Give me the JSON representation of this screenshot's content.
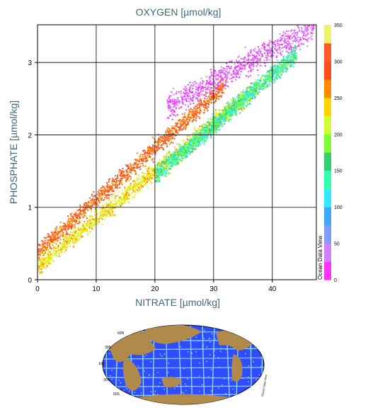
{
  "chart_data": {
    "type": "scatter",
    "title": "OXYGEN [µmol/kg]",
    "xlabel": "NITRATE [µmol/kg]",
    "ylabel": "PHOSPHATE [µmol/kg]",
    "xlim": [
      0,
      47.5
    ],
    "ylim": [
      0,
      3.52
    ],
    "x_ticks": [
      "0",
      "10",
      "20",
      "30",
      "40"
    ],
    "y_ticks": [
      "0",
      "1",
      "2",
      "3"
    ],
    "grid": true,
    "colorbar": {
      "variable": "OXYGEN [µmol/kg]",
      "range": [
        0,
        350
      ],
      "ticks": [
        "0",
        "50",
        "100",
        "150",
        "200",
        "250",
        "300",
        "350"
      ],
      "colors": [
        "#ff33ff",
        "#d27fff",
        "#7f9cff",
        "#3fa9ff",
        "#33e8ff",
        "#33ffb2",
        "#33d16b",
        "#7fff33",
        "#d1ff33",
        "#ffd400",
        "#ff8a00",
        "#ff4a1c",
        "#ff5a2a",
        "#f2f26a"
      ],
      "watermark": "Ocean Data View"
    },
    "point_groups": [
      {
        "oxygen_range": [
          250,
          330
        ],
        "trend": "upper band",
        "x_range": [
          0,
          32
        ],
        "y_at_x0": 0.4,
        "slope": 0.072
      },
      {
        "oxygen_range": [
          200,
          260
        ],
        "trend": "middle band",
        "x_range": [
          0,
          37
        ],
        "y_at_x0": 0.2,
        "slope": 0.066
      },
      {
        "oxygen_range": [
          100,
          200
        ],
        "trend": "deep band",
        "x_range": [
          20,
          44
        ],
        "y_at_x0": 0.05,
        "slope": 0.07
      },
      {
        "oxygen_range": [
          0,
          50
        ],
        "trend": "low oxygen cloud",
        "x_range": [
          22,
          47
        ],
        "y_at_x0": 1.3,
        "slope": 0.045
      }
    ]
  },
  "inset_map": {
    "description_label": "Ocean Data View",
    "lat_labels": [
      "60N",
      "30N",
      "EQ",
      "30S",
      "60S"
    ],
    "colors": {
      "ocean": "#2f4dff",
      "land": "#b08a4a",
      "stations": "#8fd4ff"
    }
  }
}
